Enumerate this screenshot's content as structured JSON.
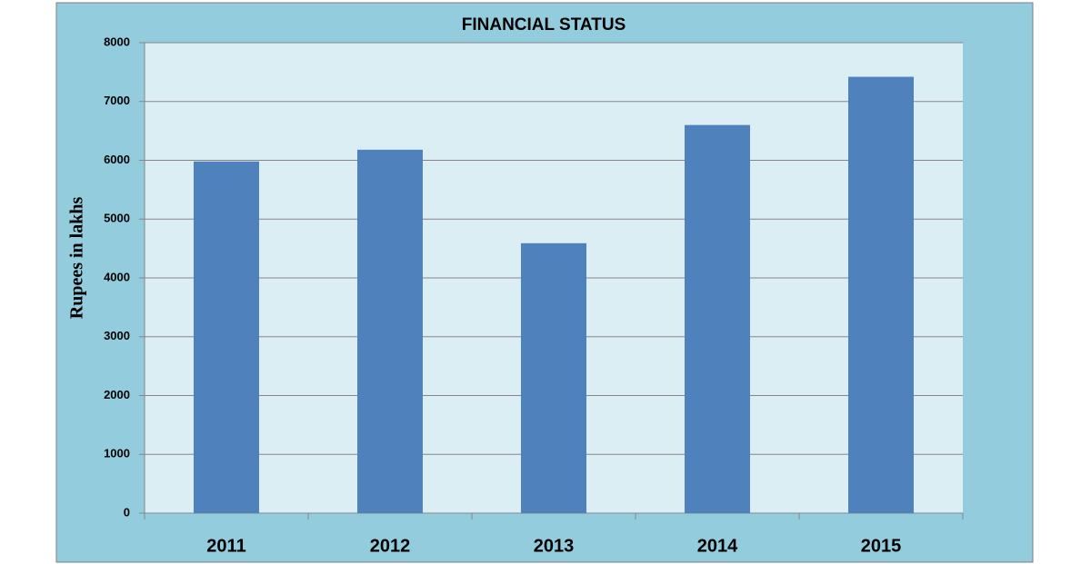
{
  "chart_data": {
    "type": "bar",
    "title": "FINANCIAL STATUS",
    "y_label": "Rupees in lakhs",
    "categories": [
      "2011",
      "2012",
      "2013",
      "2014",
      "2015"
    ],
    "values": [
      5980,
      6180,
      4590,
      6600,
      7420
    ],
    "color": "#4f81bd",
    "ylim": [
      0,
      8000
    ],
    "yticks": [
      0,
      1000,
      2000,
      3000,
      4000,
      5000,
      6000,
      7000,
      8000
    ],
    "grid": true
  }
}
